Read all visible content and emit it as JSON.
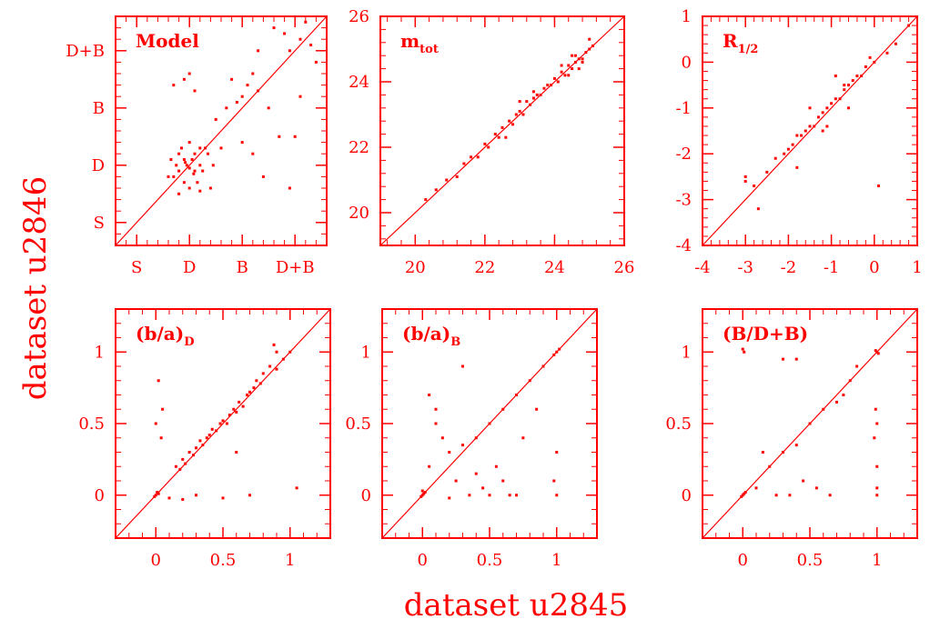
{
  "figure": {
    "xlabel": "dataset u2845",
    "ylabel": "dataset u2846",
    "color": "#ff0000"
  },
  "chart_data": [
    {
      "type": "scatter",
      "title": "Model",
      "xlim": [
        -0.4,
        3.6
      ],
      "ylim": [
        -0.4,
        3.6
      ],
      "xticks": [
        0,
        1,
        2,
        3
      ],
      "yticks": [
        0,
        1,
        2,
        3
      ],
      "xticklabels": [
        "S",
        "D",
        "B",
        "D+B"
      ],
      "yticklabels": [
        "S",
        "D",
        "B",
        "D+B"
      ],
      "x": [
        0.9,
        1.1,
        0.8,
        1.2,
        1.0,
        0.7,
        1.3,
        0.95,
        1.05,
        1.15,
        0.85,
        1.25,
        0.75,
        1.35,
        0.65,
        1.4,
        1.0,
        0.9,
        1.1,
        0.8,
        1.2,
        0.6,
        1.45,
        1.0,
        0.92,
        1.08,
        2.0,
        2.1,
        1.9,
        2.2,
        2.3,
        1.8,
        2.5,
        2.6,
        2.8,
        3.1,
        3.2,
        2.9,
        3.3,
        2.7,
        1.0,
        1.1,
        0.9,
        2.4,
        2.2,
        2.9,
        3.0,
        1.5,
        1.7,
        0.8,
        1.2,
        2.3,
        3.4,
        3.1,
        2.0,
        1.6,
        0.7
      ],
      "y": [
        1.1,
        0.9,
        1.2,
        1.0,
        0.6,
        0.8,
        1.3,
        1.0,
        1.1,
        0.7,
        1.3,
        0.9,
        1.0,
        1.2,
        1.1,
        0.6,
        1.4,
        0.7,
        1.2,
        0.9,
        1.3,
        0.8,
        1.0,
        0.95,
        1.05,
        0.85,
        2.2,
        2.4,
        2.1,
        2.6,
        2.3,
        2.5,
        2.0,
        3.4,
        3.3,
        3.2,
        3.5,
        3.0,
        3.1,
        1.5,
        2.6,
        2.3,
        2.5,
        0.8,
        1.2,
        0.6,
        1.5,
        1.8,
        2.0,
        0.5,
        0.55,
        3.0,
        2.8,
        2.2,
        1.4,
        1.3,
        2.4
      ]
    },
    {
      "type": "scatter",
      "title": "m",
      "title_subscript": "tot",
      "xlim": [
        19,
        26
      ],
      "ylim": [
        19,
        26
      ],
      "xticks": [
        20,
        22,
        24,
        26
      ],
      "yticks": [
        20,
        22,
        24,
        26
      ],
      "xticklabels": [
        "20",
        "22",
        "24",
        "26"
      ],
      "yticklabels": [
        "20",
        "22",
        "24",
        "26"
      ],
      "x": [
        20.3,
        20.6,
        20.9,
        21.2,
        21.4,
        21.6,
        21.8,
        22.0,
        22.1,
        22.3,
        22.4,
        22.5,
        22.7,
        22.8,
        22.9,
        23.0,
        23.1,
        23.2,
        23.3,
        23.4,
        23.5,
        23.6,
        23.7,
        23.8,
        23.9,
        24.0,
        24.1,
        24.2,
        24.3,
        24.4,
        24.5,
        24.6,
        24.7,
        24.8,
        24.9,
        25.0,
        25.1,
        24.4,
        24.6,
        24.2,
        23.4,
        22.6,
        24.8,
        25.0,
        23.0,
        24.5,
        24.7
      ],
      "y": [
        20.4,
        20.7,
        21.0,
        21.1,
        21.5,
        21.7,
        21.7,
        22.1,
        22.0,
        22.4,
        22.3,
        22.6,
        22.8,
        22.7,
        23.0,
        23.1,
        23.0,
        23.4,
        23.3,
        23.5,
        23.6,
        23.6,
        23.8,
        23.9,
        23.9,
        24.1,
        24.0,
        24.3,
        24.2,
        24.5,
        24.4,
        24.6,
        24.7,
        24.7,
        24.9,
        25.0,
        25.1,
        24.2,
        24.8,
        24.5,
        23.7,
        22.3,
        24.6,
        25.3,
        23.4,
        24.8,
        24.4
      ]
    },
    {
      "type": "scatter",
      "title": "R",
      "title_subscript": "1/2",
      "xlim": [
        -4,
        1
      ],
      "ylim": [
        -4,
        1
      ],
      "xticks": [
        -4,
        -3,
        -2,
        -1,
        0,
        1
      ],
      "yticks": [
        -4,
        -3,
        -2,
        -1,
        0,
        1
      ],
      "xticklabels": [
        "-4",
        "-3",
        "-2",
        "-1",
        "0",
        "1"
      ],
      "yticklabels": [
        "-4",
        "-3",
        "-2",
        "-1",
        "0",
        "1"
      ],
      "x": [
        -3.0,
        -2.8,
        -2.5,
        -2.3,
        -2.1,
        -2.0,
        -1.9,
        -1.8,
        -1.7,
        -1.6,
        -1.5,
        -1.4,
        -1.3,
        -1.2,
        -1.1,
        -1.0,
        -0.9,
        -0.8,
        -0.7,
        -0.6,
        -0.5,
        -0.4,
        -0.3,
        -0.2,
        -0.1,
        0.0,
        0.3,
        0.5,
        0.8,
        -1.5,
        -1.2,
        -0.9,
        -0.6,
        -1.8,
        -1.1,
        -0.7,
        -2.7,
        -3.0,
        0.1
      ],
      "y": [
        -2.6,
        -2.7,
        -2.4,
        -2.1,
        -2.0,
        -1.9,
        -1.8,
        -1.6,
        -1.6,
        -1.5,
        -1.4,
        -1.4,
        -1.2,
        -1.1,
        -1.0,
        -0.9,
        -0.8,
        -0.8,
        -0.6,
        -0.5,
        -0.4,
        -0.3,
        -0.3,
        -0.1,
        0.1,
        0.0,
        0.2,
        0.4,
        0.8,
        -1.0,
        -1.5,
        -0.3,
        -1.0,
        -2.3,
        -1.4,
        -0.5,
        -3.2,
        -2.5,
        -2.7
      ]
    },
    {
      "type": "scatter",
      "title": "(b/a)",
      "title_subscript": "D",
      "xlim": [
        -0.3,
        1.3
      ],
      "ylim": [
        -0.3,
        1.3
      ],
      "xticks": [
        0,
        0.5,
        1
      ],
      "yticks": [
        0,
        0.5,
        1
      ],
      "xticklabels": [
        "0",
        "0.5",
        "1"
      ],
      "yticklabels": [
        "0",
        "0.5",
        "1"
      ],
      "x": [
        0.0,
        0.01,
        -0.01,
        0.02,
        0.15,
        0.18,
        0.2,
        0.22,
        0.25,
        0.28,
        0.3,
        0.33,
        0.35,
        0.38,
        0.4,
        0.42,
        0.45,
        0.48,
        0.5,
        0.53,
        0.55,
        0.58,
        0.6,
        0.62,
        0.65,
        0.68,
        0.7,
        0.73,
        0.75,
        0.78,
        0.8,
        0.85,
        0.9,
        0.95,
        1.0,
        0.0,
        0.05,
        0.02,
        0.04,
        0.1,
        0.2,
        0.3,
        0.5,
        0.7,
        0.9,
        1.05,
        0.6,
        0.88
      ],
      "y": [
        0.0,
        0.02,
        -0.01,
        0.01,
        0.2,
        0.18,
        0.25,
        0.22,
        0.3,
        0.28,
        0.33,
        0.38,
        0.35,
        0.4,
        0.42,
        0.46,
        0.45,
        0.5,
        0.52,
        0.5,
        0.56,
        0.6,
        0.58,
        0.65,
        0.62,
        0.7,
        0.72,
        0.75,
        0.8,
        0.78,
        0.85,
        0.9,
        0.88,
        0.95,
        1.0,
        0.5,
        0.6,
        0.8,
        0.4,
        -0.02,
        -0.03,
        0.0,
        -0.02,
        0.0,
        1.0,
        0.05,
        0.3,
        1.05
      ]
    },
    {
      "type": "scatter",
      "title": "(b/a)",
      "title_subscript": "B",
      "xlim": [
        -0.3,
        1.3
      ],
      "ylim": [
        -0.3,
        1.3
      ],
      "xticks": [
        0,
        0.5,
        1
      ],
      "yticks": [
        0,
        0.5,
        1
      ],
      "xticklabels": [
        "0",
        "0.5",
        "1"
      ],
      "yticklabels": [
        "0",
        "0.5",
        "1"
      ],
      "x": [
        0.0,
        0.01,
        -0.01,
        0.02,
        0.0,
        1.0,
        0.98,
        1.02,
        0.2,
        0.3,
        0.4,
        0.5,
        0.6,
        0.7,
        0.8,
        0.9,
        0.25,
        0.35,
        0.45,
        0.55,
        0.65,
        0.75,
        0.85,
        0.1,
        0.15,
        0.05,
        0.05,
        0.1,
        0.4,
        0.6,
        0.7,
        1.0,
        1.0,
        0.98,
        0.3,
        0.5,
        0.2
      ],
      "y": [
        0.0,
        0.01,
        -0.01,
        0.02,
        0.03,
        1.0,
        0.98,
        1.02,
        0.3,
        0.35,
        0.4,
        0.5,
        0.6,
        0.7,
        0.8,
        0.9,
        0.1,
        0.0,
        0.05,
        0.2,
        0.0,
        0.4,
        0.6,
        0.6,
        0.4,
        0.7,
        0.2,
        0.5,
        0.15,
        0.1,
        0.0,
        0.0,
        0.3,
        0.1,
        0.9,
        0.0,
        -0.02
      ]
    },
    {
      "type": "scatter",
      "title": "(B/D+B)",
      "xlim": [
        -0.3,
        1.3
      ],
      "ylim": [
        -0.3,
        1.3
      ],
      "xticks": [
        0,
        0.5,
        1
      ],
      "yticks": [
        0,
        0.5,
        1
      ],
      "xticklabels": [
        "0",
        "0.5",
        "1"
      ],
      "yticklabels": [
        "0",
        "0.5",
        "1"
      ],
      "x": [
        0.0,
        0.01,
        -0.01,
        0.02,
        1.0,
        0.99,
        1.01,
        1.0,
        0.98,
        1.0,
        1.0,
        1.0,
        0.99,
        0.0,
        0.01,
        0.2,
        0.3,
        0.4,
        0.5,
        0.6,
        0.7,
        0.8,
        0.25,
        0.35,
        0.55,
        0.65,
        0.15,
        0.45,
        0.85,
        0.3,
        0.1,
        0.75,
        0.4
      ],
      "y": [
        0.0,
        0.01,
        -0.01,
        0.02,
        1.0,
        1.01,
        0.99,
        0.5,
        0.4,
        0.2,
        0.0,
        0.05,
        0.6,
        1.02,
        1.0,
        0.2,
        0.3,
        0.35,
        0.5,
        0.6,
        0.65,
        0.8,
        0.0,
        0.0,
        0.05,
        0.0,
        0.3,
        0.1,
        0.9,
        0.95,
        0.05,
        0.7,
        0.95
      ]
    }
  ]
}
